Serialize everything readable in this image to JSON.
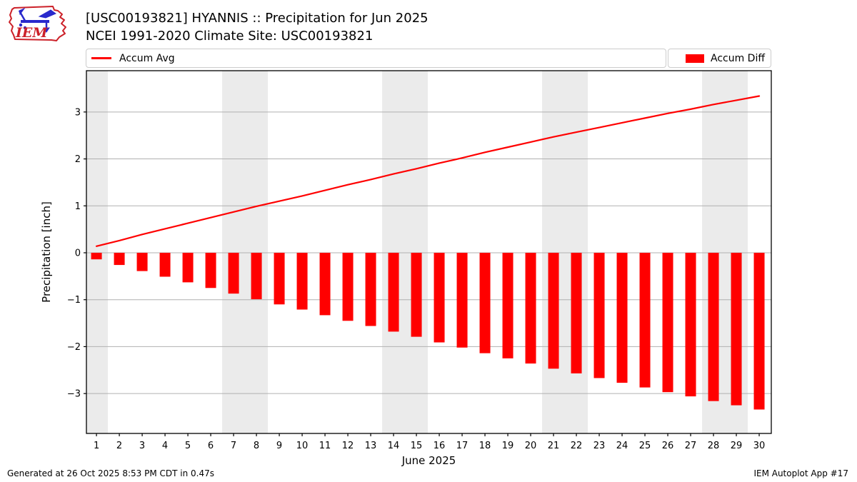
{
  "header": {
    "logo_text": "IEM",
    "title_line1": "[USC00193821] HYANNIS :: Precipitation for Jun 2025",
    "title_line2": "NCEI 1991-2020 Climate Site: USC00193821"
  },
  "legend": {
    "line_label": "Accum Avg",
    "bar_label": "Accum Diff"
  },
  "footer": {
    "left": "Generated at 26 Oct 2025 8:53 PM CDT in 0.47s",
    "right": "IEM Autoplot App #17"
  },
  "colors": {
    "series_red": "#ff0000",
    "weekend_band": "#ebebeb",
    "gridline": "#b0b0b0",
    "axis": "#000000",
    "legend_border": "#cccccc",
    "logo_red": "#cc2129",
    "logo_blue": "#2929cc"
  },
  "chart_data": {
    "type": "line+bar",
    "title": "[USC00193821] HYANNIS :: Precipitation for Jun 2025",
    "subtitle": "NCEI 1991-2020 Climate Site: USC00193821",
    "xlabel": "June 2025",
    "ylabel": "Precipitation [inch]",
    "x": [
      1,
      2,
      3,
      4,
      5,
      6,
      7,
      8,
      9,
      10,
      11,
      12,
      13,
      14,
      15,
      16,
      17,
      18,
      19,
      20,
      21,
      22,
      23,
      24,
      25,
      26,
      27,
      28,
      29,
      30
    ],
    "series": [
      {
        "name": "Accum Avg",
        "type": "line",
        "color": "#ff0000",
        "values": [
          0.14,
          0.26,
          0.39,
          0.51,
          0.63,
          0.75,
          0.87,
          0.99,
          1.1,
          1.21,
          1.33,
          1.45,
          1.56,
          1.68,
          1.79,
          1.91,
          2.02,
          2.14,
          2.25,
          2.36,
          2.47,
          2.57,
          2.67,
          2.77,
          2.87,
          2.97,
          3.06,
          3.16,
          3.25,
          3.34
        ]
      },
      {
        "name": "Accum Diff",
        "type": "bar",
        "color": "#ff0000",
        "values": [
          -0.14,
          -0.26,
          -0.39,
          -0.51,
          -0.63,
          -0.75,
          -0.87,
          -0.99,
          -1.1,
          -1.21,
          -1.33,
          -1.45,
          -1.56,
          -1.68,
          -1.79,
          -1.91,
          -2.02,
          -2.14,
          -2.25,
          -2.36,
          -2.47,
          -2.57,
          -2.67,
          -2.77,
          -2.87,
          -2.97,
          -3.06,
          -3.16,
          -3.25,
          -3.34
        ]
      }
    ],
    "xlim": [
      0.56,
      30.53
    ],
    "ylim": [
      -3.85,
      3.88
    ],
    "yticks": [
      -3,
      -2,
      -1,
      0,
      1,
      2,
      3
    ],
    "grid": "horizontal",
    "legend_position": "top",
    "weekend_bands": [
      [
        0.56,
        1.5
      ],
      [
        6.5,
        8.5
      ],
      [
        13.5,
        15.5
      ],
      [
        20.5,
        22.5
      ],
      [
        27.5,
        29.5
      ]
    ]
  }
}
